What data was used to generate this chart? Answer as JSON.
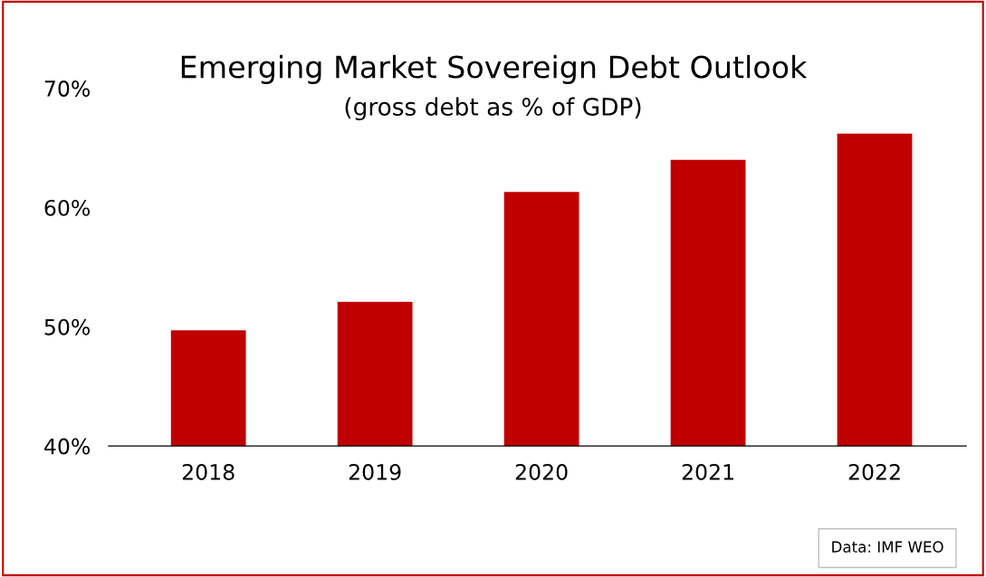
{
  "chart_data": {
    "type": "bar",
    "title": "Emerging Market Sovereign Debt Outlook",
    "subtitle": "(gross debt as % of GDP)",
    "categories": [
      "2018",
      "2019",
      "2020",
      "2021",
      "2022"
    ],
    "values": [
      49.7,
      52.1,
      61.3,
      64.0,
      66.2
    ],
    "colors": [
      "#c00000",
      "#c00000",
      "#c00000",
      "#c00000",
      "#c00000"
    ],
    "ylim": [
      40,
      70
    ],
    "yticks": [
      {
        "value": 40,
        "label": "40%"
      },
      {
        "value": 50,
        "label": "50%"
      },
      {
        "value": 60,
        "label": "60%"
      },
      {
        "value": 70,
        "label": "70%"
      }
    ],
    "annotations": [
      "Data: IMF WEO"
    ],
    "grid": false,
    "legend": false
  }
}
